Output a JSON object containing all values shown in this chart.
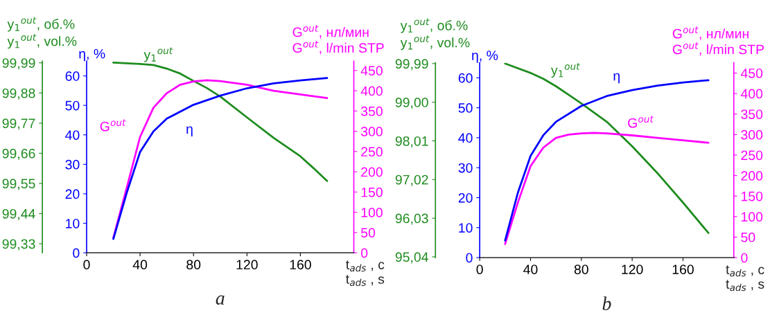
{
  "chart_data": [
    {
      "type": "line",
      "title": "a",
      "xlabel": "t$_{ads}$ , с\nt$_{ads}$ , s",
      "ylabel": "η, %",
      "y2label": "G$^{out}$, нл/мин\nG$^{out}$, l/min STP",
      "y3label": "y$_{1}$$^{out}$, об.%\ny$_{1}$$^{out}$, vol.%",
      "xlim": [
        0,
        200
      ],
      "xticks": [
        0,
        40,
        80,
        120,
        160
      ],
      "ylim": [
        0,
        65
      ],
      "yticks": [
        0,
        10,
        20,
        30,
        40,
        50,
        60
      ],
      "y2lim": [
        0,
        473
      ],
      "y2ticks": [
        0,
        50,
        100,
        150,
        200,
        250,
        300,
        350,
        400,
        450
      ],
      "y3lim": [
        99.297,
        99.996
      ],
      "y3ticks": [
        {
          "value": 99.33,
          "label": "99,33"
        },
        {
          "value": 99.44,
          "label": "99,44"
        },
        {
          "value": 99.55,
          "label": "99,55"
        },
        {
          "value": 99.66,
          "label": "99,66"
        },
        {
          "value": 99.77,
          "label": "99,77"
        },
        {
          "value": 99.88,
          "label": "99,88"
        },
        {
          "value": 99.99,
          "label": "99,99"
        }
      ],
      "grid": false,
      "series": [
        {
          "name": "η",
          "color": "#0000ff",
          "x": [
            20,
            30,
            40,
            50,
            60,
            80,
            100,
            120,
            140,
            160,
            180
          ],
          "values": [
            4.7,
            20.3,
            34.2,
            41.2,
            45.5,
            50.2,
            53.3,
            55.8,
            57.5,
            58.5,
            59.3
          ]
        },
        {
          "name": "G$^{out}$",
          "color": "#ff00ff",
          "axis": "y2",
          "x": [
            20,
            30,
            40,
            50,
            60,
            70,
            80,
            90,
            100,
            120,
            140,
            160,
            180
          ],
          "values": [
            37,
            160,
            286,
            358,
            394,
            415,
            423,
            426,
            424,
            415,
            400,
            391,
            382
          ]
        },
        {
          "name": "y$_{1}$$^{out}$",
          "color": "#1e8c1e",
          "axis": "y3",
          "x": [
            20,
            40,
            50,
            60,
            70,
            80,
            90,
            100,
            120,
            140,
            160,
            170,
            180
          ],
          "values": [
            99.991,
            99.986,
            99.982,
            99.969,
            99.951,
            99.924,
            99.898,
            99.867,
            99.791,
            99.716,
            99.649,
            99.605,
            99.559
          ]
        }
      ]
    },
    {
      "type": "line",
      "title": "b",
      "xlabel": "t$_{ads}$ , с\nt$_{ads}$ , s",
      "ylabel": "η, %",
      "y2label": "G$^{out}$, нл/мин\nG$^{out}$, l/min STP",
      "y3label": "y$_{1}$$^{out}$, об.%\ny$_{1}$$^{out}$, vol.%",
      "xlim": [
        0,
        200
      ],
      "xticks": [
        0,
        40,
        80,
        120,
        160
      ],
      "ylim": [
        0,
        65
      ],
      "yticks": [
        0,
        10,
        20,
        30,
        40,
        50,
        60
      ],
      "y2lim": [
        0,
        475
      ],
      "y2ticks": [
        0,
        50,
        100,
        150,
        200,
        250,
        300,
        350,
        400,
        450
      ],
      "y3lim": [
        95.02,
        100.01
      ],
      "y3ticks": [
        {
          "value": 95.04,
          "label": "95,04"
        },
        {
          "value": 96.03,
          "label": "96,03"
        },
        {
          "value": 97.02,
          "label": "97,02"
        },
        {
          "value": 98.01,
          "label": "98,01"
        },
        {
          "value": 99.0,
          "label": "99,00"
        },
        {
          "value": 99.99,
          "label": "99,99"
        }
      ],
      "grid": false,
      "series": [
        {
          "name": "η",
          "color": "#0000ff",
          "x": [
            20,
            30,
            40,
            50,
            60,
            80,
            100,
            120,
            140,
            160,
            180
          ],
          "values": [
            5.7,
            21.6,
            33.9,
            40.8,
            45.3,
            50.6,
            53.9,
            55.9,
            57.4,
            58.4,
            59.2
          ]
        },
        {
          "name": "G$^{out}$",
          "color": "#ff00ff",
          "axis": "y2",
          "x": [
            20,
            30,
            40,
            50,
            60,
            70,
            80,
            90,
            100,
            120,
            140,
            160,
            180
          ],
          "values": [
            33,
            134,
            223,
            268,
            292,
            300,
            303,
            304,
            303,
            298,
            292,
            286,
            280
          ]
        },
        {
          "name": "y$_{1}$$^{out}$",
          "color": "#1e8c1e",
          "axis": "y3",
          "x": [
            20,
            40,
            50,
            60,
            70,
            80,
            100,
            120,
            140,
            160,
            180
          ],
          "values": [
            99.99,
            99.75,
            99.6,
            99.41,
            99.19,
            98.97,
            98.5,
            97.87,
            97.18,
            96.43,
            95.65
          ]
        }
      ]
    }
  ]
}
